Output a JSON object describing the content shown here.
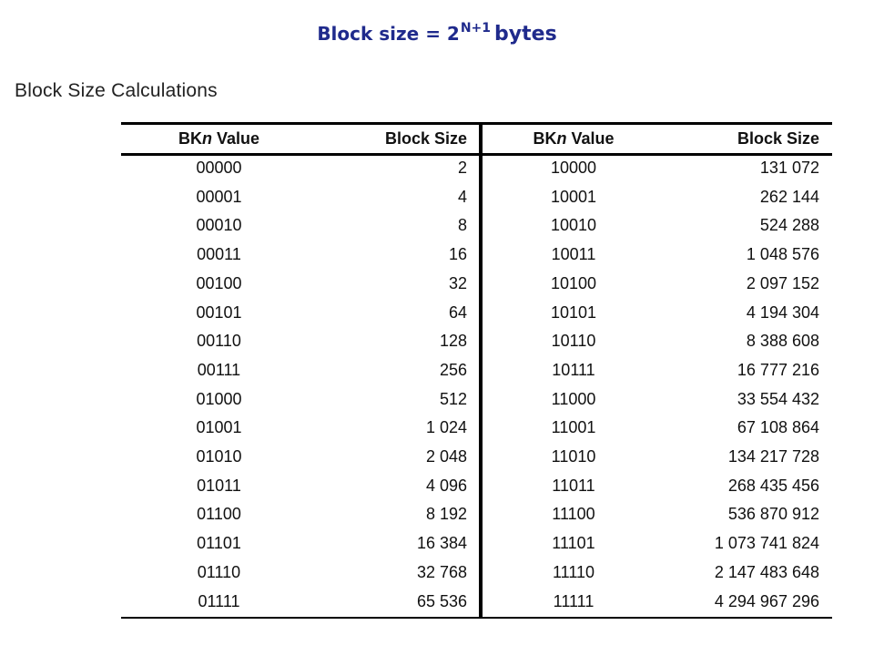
{
  "title": {
    "prefix": "Block size = 2",
    "superscript": "N+1",
    "unit": "bytes"
  },
  "heading": "Block Size Calculations",
  "table": {
    "headers": [
      {
        "pre": "BK",
        "italic": "n",
        "post": " Value"
      },
      {
        "pre": "Block Size",
        "italic": "",
        "post": ""
      },
      {
        "pre": "BK",
        "italic": "n",
        "post": " Value"
      },
      {
        "pre": "Block Size",
        "italic": "",
        "post": ""
      }
    ],
    "rows": [
      [
        "00000",
        "2",
        "10000",
        "131 072"
      ],
      [
        "00001",
        "4",
        "10001",
        "262 144"
      ],
      [
        "00010",
        "8",
        "10010",
        "524 288"
      ],
      [
        "00011",
        "16",
        "10011",
        "1 048 576"
      ],
      [
        "00100",
        "32",
        "10100",
        "2 097 152"
      ],
      [
        "00101",
        "64",
        "10101",
        "4 194 304"
      ],
      [
        "00110",
        "128",
        "10110",
        "8 388 608"
      ],
      [
        "00111",
        "256",
        "10111",
        "16 777 216"
      ],
      [
        "01000",
        "512",
        "11000",
        "33 554 432"
      ],
      [
        "01001",
        "1 024",
        "11001",
        "67 108 864"
      ],
      [
        "01010",
        "2 048",
        "11010",
        "134 217 728"
      ],
      [
        "01011",
        "4 096",
        "11011",
        "268 435 456"
      ],
      [
        "01100",
        "8 192",
        "11100",
        "536 870 912"
      ],
      [
        "01101",
        "16 384",
        "11101",
        "1 073 741 824"
      ],
      [
        "01110",
        "32 768",
        "11110",
        "2 147 483 648"
      ],
      [
        "01111",
        "65 536",
        "11111",
        "4 294 967 296"
      ]
    ]
  }
}
